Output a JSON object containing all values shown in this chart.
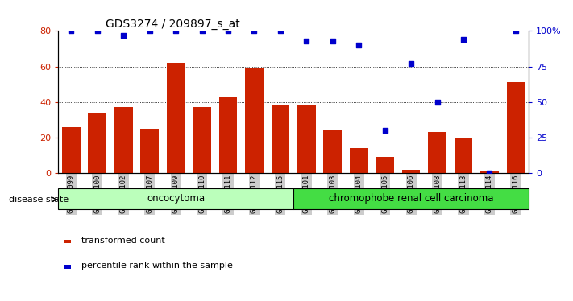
{
  "title": "GDS3274 / 209897_s_at",
  "samples": [
    "GSM305099",
    "GSM305100",
    "GSM305102",
    "GSM305107",
    "GSM305109",
    "GSM305110",
    "GSM305111",
    "GSM305112",
    "GSM305115",
    "GSM305101",
    "GSM305103",
    "GSM305104",
    "GSM305105",
    "GSM305106",
    "GSM305108",
    "GSM305113",
    "GSM305114",
    "GSM305116"
  ],
  "bar_values": [
    26,
    34,
    37,
    25,
    62,
    37,
    43,
    59,
    38,
    38,
    24,
    14,
    9,
    2,
    23,
    20,
    1,
    51
  ],
  "percentile_values": [
    100,
    100,
    97,
    100,
    100,
    100,
    100,
    100,
    100,
    93,
    93,
    90,
    30,
    77,
    50,
    94,
    0,
    100
  ],
  "bar_color": "#cc2200",
  "percentile_color": "#0000cc",
  "left_ylim": [
    0,
    80
  ],
  "right_ylim": [
    0,
    100
  ],
  "left_yticks": [
    0,
    20,
    40,
    60,
    80
  ],
  "right_yticks": [
    0,
    25,
    50,
    75,
    100
  ],
  "right_yticklabels": [
    "0",
    "25",
    "50",
    "75",
    "100%"
  ],
  "grid_values": [
    20,
    40,
    60,
    80
  ],
  "oncocytoma_count": 9,
  "chromophobe_count": 9,
  "oncocytoma_color": "#bbffbb",
  "chromophobe_color": "#44dd44",
  "disease_label": "disease state",
  "oncocytoma_label": "oncocytoma",
  "chromophobe_label": "chromophobe renal cell carcinoma",
  "legend_bar_label": "transformed count",
  "legend_percentile_label": "percentile rank within the sample",
  "tick_label_bg": "#cccccc"
}
